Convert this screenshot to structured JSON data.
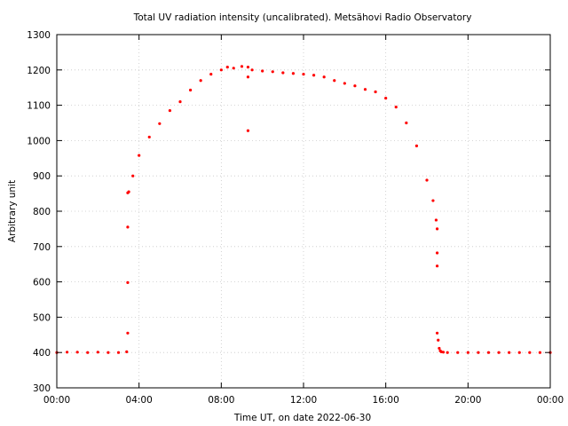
{
  "chart_data": {
    "type": "scatter",
    "title": "Total UV radiation intensity (uncalibrated). Metsähovi Radio Observatory",
    "xlabel": "Time UT, on date 2022-06-30",
    "ylabel": "Arbitrary unit",
    "xlim": [
      0,
      24
    ],
    "ylim": [
      300,
      1300
    ],
    "x_ticks": [
      {
        "value": 0,
        "label": "00:00"
      },
      {
        "value": 4,
        "label": "04:00"
      },
      {
        "value": 8,
        "label": "08:00"
      },
      {
        "value": 12,
        "label": "12:00"
      },
      {
        "value": 16,
        "label": "16:00"
      },
      {
        "value": 20,
        "label": "20:00"
      },
      {
        "value": 24,
        "label": "00:00"
      }
    ],
    "y_ticks": [
      {
        "value": 300,
        "label": "300"
      },
      {
        "value": 400,
        "label": "400"
      },
      {
        "value": 500,
        "label": "500"
      },
      {
        "value": 600,
        "label": "600"
      },
      {
        "value": 700,
        "label": "700"
      },
      {
        "value": 800,
        "label": "800"
      },
      {
        "value": 900,
        "label": "900"
      },
      {
        "value": 1000,
        "label": "1000"
      },
      {
        "value": 1100,
        "label": "1100"
      },
      {
        "value": 1200,
        "label": "1200"
      },
      {
        "value": 1300,
        "label": "1300"
      }
    ],
    "grid": true,
    "marker_color": "#ff0000",
    "series": [
      {
        "x": [
          0.0,
          0.5,
          1.0,
          1.5,
          2.0,
          2.5,
          3.0,
          3.4,
          3.45,
          3.45,
          3.45,
          3.45,
          3.5,
          3.7,
          4.0,
          4.5,
          5.0,
          5.5,
          6.0,
          6.5,
          7.0,
          7.5,
          8.0,
          8.3,
          8.6,
          9.0,
          9.3,
          9.3,
          9.3,
          9.5,
          10.0,
          10.5,
          11.0,
          11.5,
          12.0,
          12.5,
          13.0,
          13.5,
          14.0,
          14.5,
          15.0,
          15.5,
          16.0,
          16.5,
          17.0,
          17.5,
          18.0,
          18.3,
          18.45,
          18.5,
          18.5,
          18.5,
          18.5,
          18.55,
          18.6,
          18.65,
          18.7,
          18.8,
          19.0,
          19.5,
          20.0,
          20.5,
          21.0,
          21.5,
          22.0,
          22.5,
          23.0,
          23.5,
          24.0
        ],
        "y": [
          400,
          401,
          401,
          400,
          401,
          400,
          400,
          402,
          455,
          598,
          755,
          852,
          855,
          900,
          958,
          1010,
          1048,
          1085,
          1110,
          1143,
          1170,
          1188,
          1200,
          1208,
          1205,
          1210,
          1208,
          1180,
          1028,
          1200,
          1197,
          1195,
          1192,
          1190,
          1188,
          1185,
          1180,
          1170,
          1162,
          1155,
          1145,
          1138,
          1120,
          1095,
          1050,
          985,
          888,
          830,
          775,
          750,
          682,
          645,
          455,
          435,
          412,
          405,
          402,
          401,
          400,
          400,
          400,
          400,
          400,
          400,
          400,
          400,
          400,
          400,
          400
        ]
      }
    ]
  }
}
